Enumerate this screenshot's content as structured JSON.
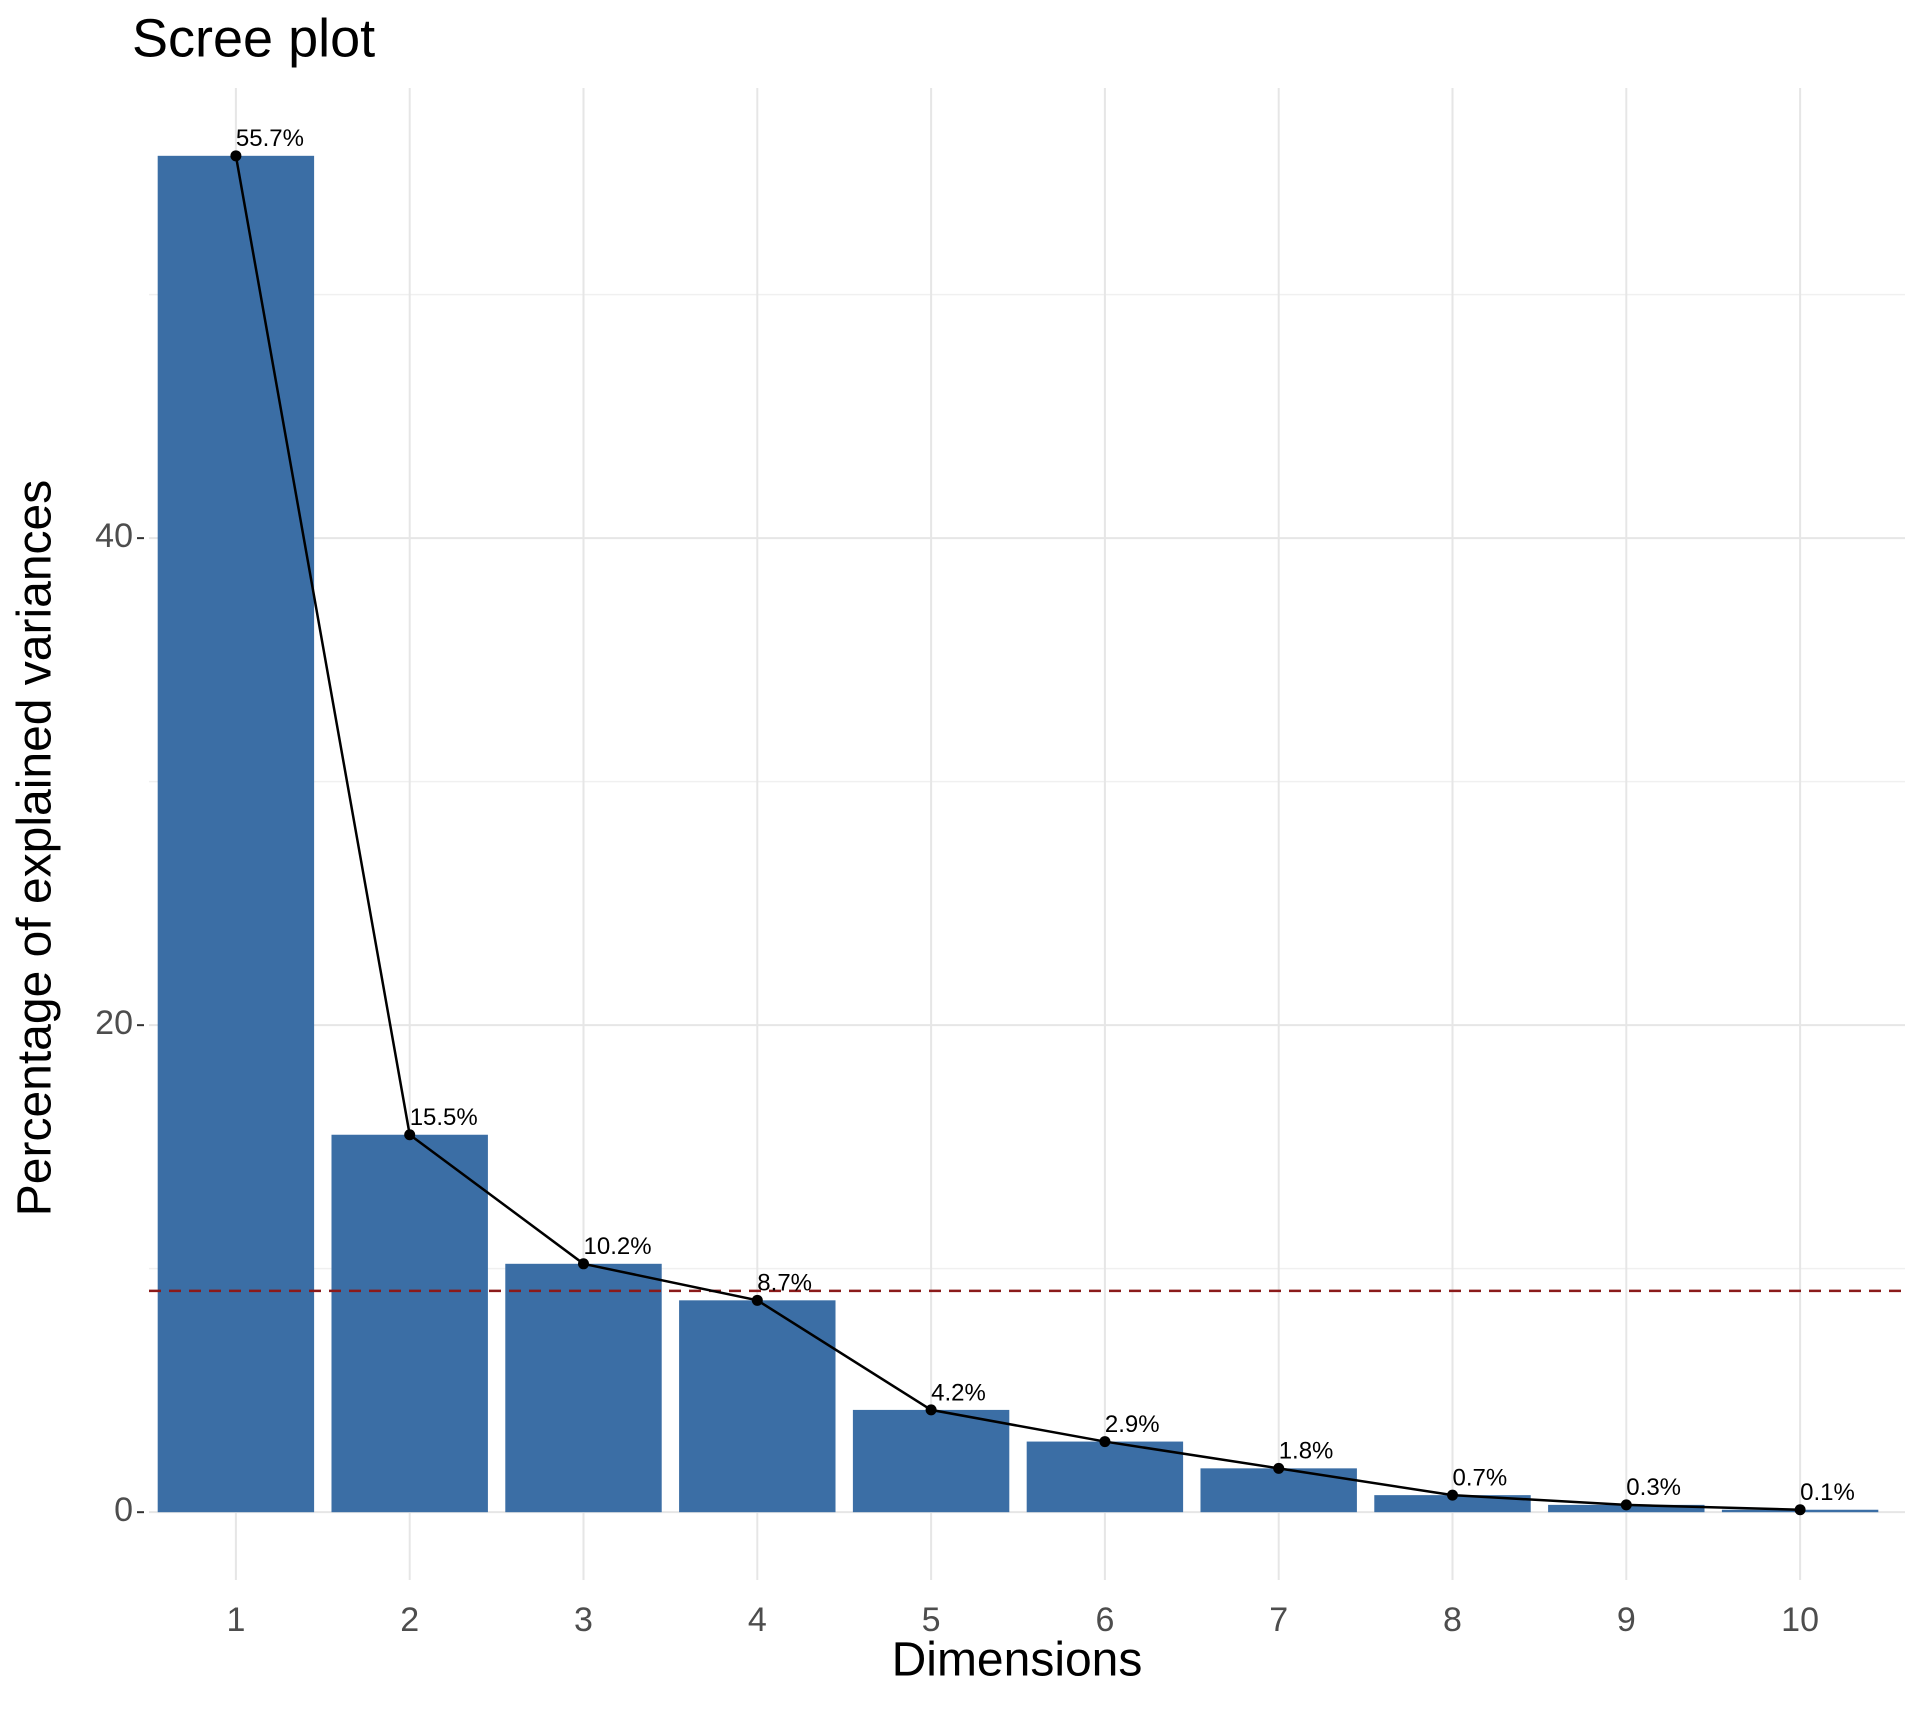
{
  "chart_data": {
    "type": "bar",
    "title": "Scree plot",
    "x_label": "Dimensions",
    "y_label": "Percentage of explained variances",
    "categories": [
      "1",
      "2",
      "3",
      "4",
      "5",
      "6",
      "7",
      "8",
      "9",
      "10"
    ],
    "values": [
      55.7,
      15.5,
      10.2,
      8.7,
      4.2,
      2.9,
      1.8,
      0.7,
      0.3,
      0.1
    ],
    "value_labels": [
      "55.7%",
      "15.5%",
      "10.2%",
      "8.7%",
      "4.2%",
      "2.9%",
      "1.8%",
      "0.7%",
      "0.3%",
      "0.1%"
    ],
    "color": "#3b6ea5",
    "line_color": "#000000",
    "ylim": [
      -2.785,
      58.485
    ],
    "yticks": [
      0,
      20,
      40
    ],
    "minor_yticks": [
      10,
      30,
      50
    ],
    "grid": true,
    "reference_line": 9.09,
    "reference_color": "#8b1a1a"
  }
}
